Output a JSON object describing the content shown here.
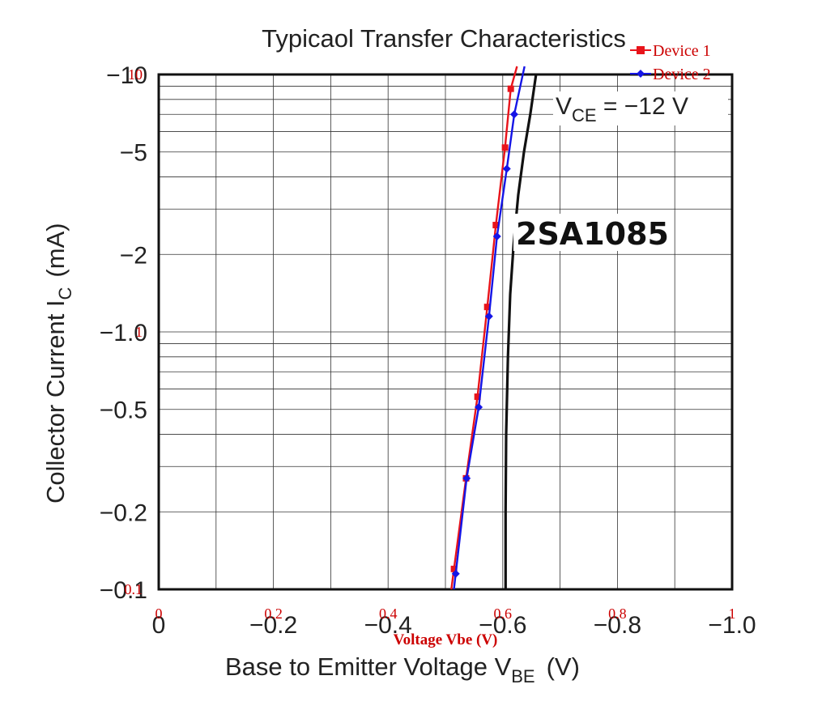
{
  "chart_data": {
    "type": "line",
    "title": "Typicaol Transfer Characteristics",
    "xlabel_main": "Base to Emitter Voltage  V",
    "xlabel_sub": "BE",
    "xlabel_unit": "(V)",
    "ylabel_main": "Collector Current  I",
    "ylabel_sub": "C",
    "ylabel_unit": "(mA)",
    "overlay_xlabel": "Voltage Vbe (V)",
    "x_tick_labels": [
      "0",
      "−0.2",
      "−0.4",
      "−0.6",
      "−0.8",
      "−1.0"
    ],
    "x_tick_labels_overlay": [
      "0",
      "0.2",
      "0.4",
      "0.6",
      "0.8",
      "1"
    ],
    "y_tick_labels": [
      "−10",
      "−5",
      "−2",
      "−1.0",
      "−0.5",
      "−0.2",
      "−0.1"
    ],
    "y_tick_values": [
      10,
      5,
      2,
      1,
      0.5,
      0.2,
      0.1
    ],
    "y_tick_labels_overlay": [
      "10",
      "1",
      "0.1"
    ],
    "y_tick_values_overlay": [
      10,
      1,
      0.1
    ],
    "xlim": [
      0,
      1.0
    ],
    "ylim": [
      0.1,
      10
    ],
    "y_scale": "log",
    "grid": true,
    "legend_position": "top-right",
    "annotations": {
      "device_name": "2SA1085",
      "vce_prefix": "V",
      "vce_sub": "CE",
      "vce_value": " = −12 V"
    },
    "series": [
      {
        "name": "Device 1",
        "color": "#e8141b",
        "marker": "square",
        "x": [
          0.515,
          0.536,
          0.556,
          0.573,
          0.588,
          0.604,
          0.614
        ],
        "y": [
          0.12,
          0.27,
          0.56,
          1.25,
          2.6,
          5.2,
          8.8
        ]
      },
      {
        "name": "Device 2",
        "color": "#1515e6",
        "marker": "diamond",
        "x": [
          0.518,
          0.537,
          0.558,
          0.576,
          0.59,
          0.607,
          0.62
        ],
        "y": [
          0.115,
          0.27,
          0.51,
          1.15,
          2.35,
          4.3,
          7.0
        ]
      },
      {
        "color": "#111111",
        "marker": "none",
        "x": [
          0.605,
          0.605,
          0.606,
          0.609,
          0.613,
          0.619,
          0.627,
          0.637,
          0.648,
          0.658
        ],
        "y": [
          0.1,
          0.2,
          0.4,
          0.8,
          1.4,
          2.2,
          3.4,
          5.0,
          7.0,
          10.0
        ]
      }
    ]
  }
}
